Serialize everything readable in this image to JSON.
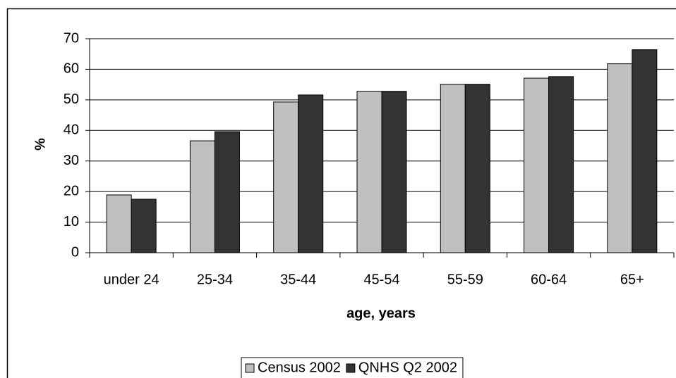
{
  "chart_data": {
    "type": "bar",
    "y_label": "%",
    "x_label": "age, years",
    "categories": [
      "under 24",
      "25-34",
      "35-44",
      "45-54",
      "55-59",
      "60-64",
      "65+"
    ],
    "series": [
      {
        "name": "Census 2002",
        "color": "#c0c0c0",
        "values": [
          18.9,
          36.6,
          49.3,
          52.8,
          55.1,
          57.1,
          61.8
        ]
      },
      {
        "name": "QNHS Q2 2002",
        "color": "#333333",
        "values": [
          17.5,
          39.6,
          51.6,
          52.8,
          55.1,
          57.6,
          66.4
        ]
      }
    ],
    "ylim": [
      0,
      70
    ],
    "yticks": [
      0,
      10,
      20,
      30,
      40,
      50,
      60,
      70
    ],
    "grid": true,
    "legend": "bottom"
  }
}
